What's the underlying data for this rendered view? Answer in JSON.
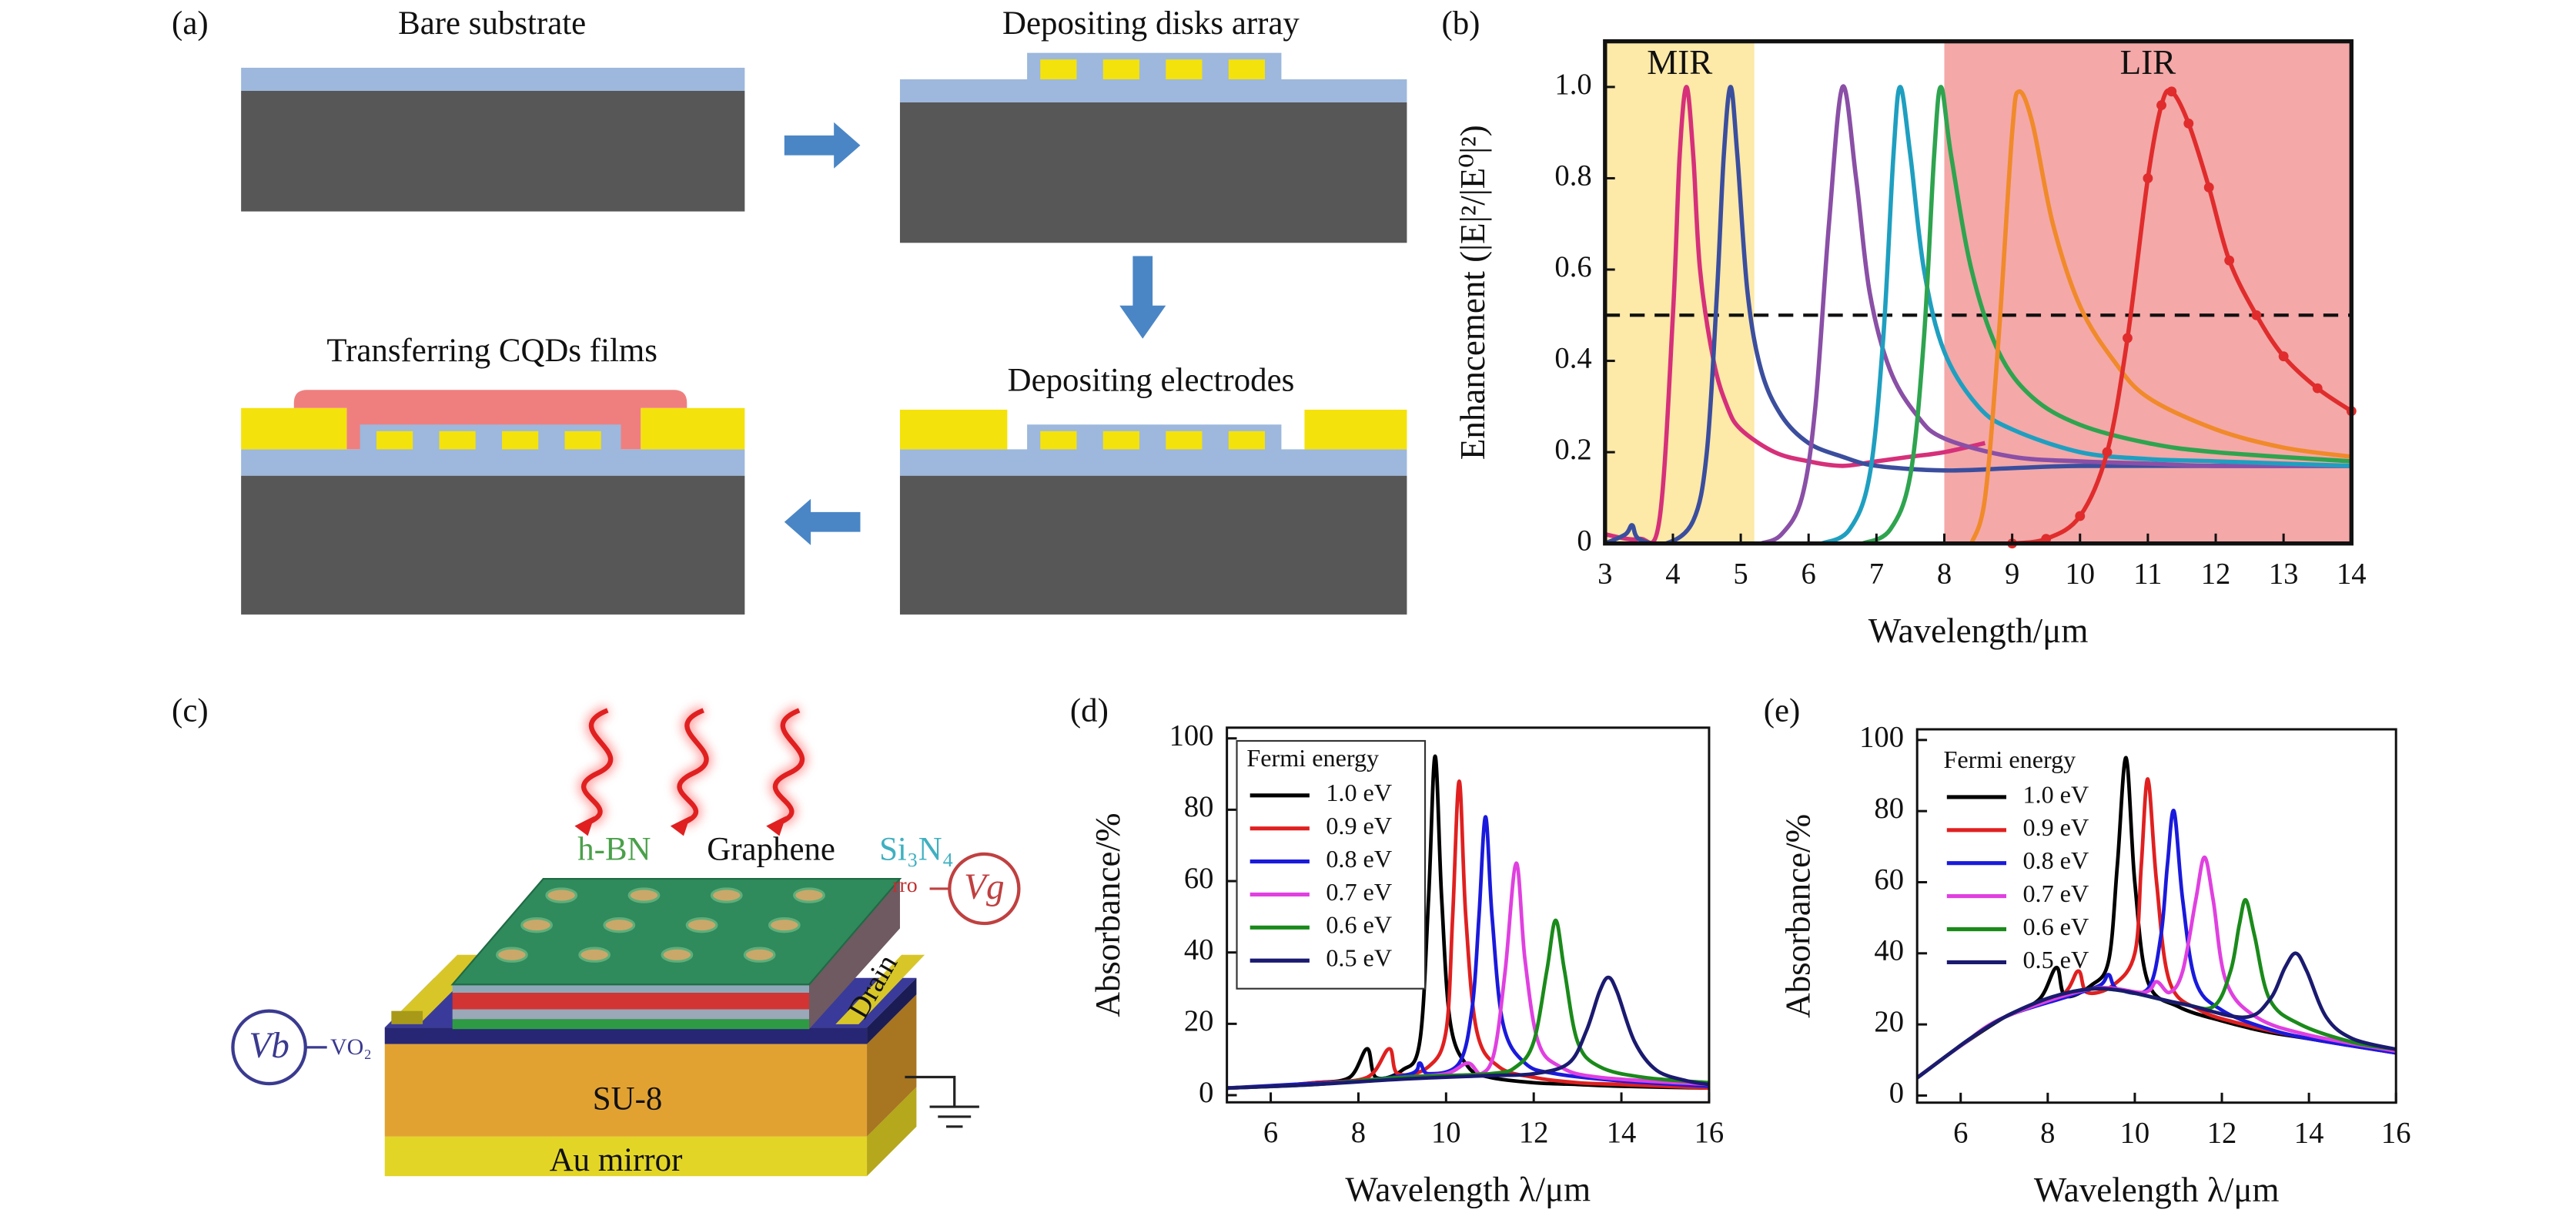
{
  "panels": {
    "a": {
      "label": "(a)",
      "steps": [
        "Bare substrate",
        "Depositing disks array",
        "Depositing electrodes",
        "Transferring CQDs films"
      ]
    },
    "c": {
      "label": "(c)",
      "layers": {
        "hbn": "h-BN",
        "graphene": "Graphene",
        "sin": "Si₃N₄",
        "vo2": "VO₂",
        "drain": "Drain",
        "su8": "SU-8",
        "mirror": "Au mirror"
      },
      "gate_tag": "rro",
      "vg": "Vg",
      "vb": "Vb"
    }
  },
  "chart_data": [
    {
      "type": "line",
      "panel_label": "(b)",
      "xlabel": "Wavelength/μm",
      "ylabel": "Enhancement (|E|²/|E⁰|²)",
      "xlim": [
        3,
        14
      ],
      "xticks": [
        3,
        4,
        5,
        6,
        7,
        8,
        9,
        10,
        11,
        12,
        13,
        14
      ],
      "ylim": [
        0,
        1.1
      ],
      "yticks": [
        0,
        0.2,
        0.4,
        0.6,
        0.8,
        {
          "value": 1,
          "label": "1.0"
        }
      ],
      "regions": [
        {
          "label": "MIR",
          "range": [
            3,
            5.2
          ],
          "color": "#fde9a8"
        },
        {
          "label": "LIR",
          "range": [
            8,
            14
          ],
          "color": "#f4a8a8"
        }
      ],
      "hline": 0.5,
      "series": [
        {
          "color": "#d6307a",
          "x": [
            3,
            3.5,
            3.8,
            4.0,
            4.1,
            4.2,
            4.3,
            4.4,
            4.6,
            4.8,
            5.0,
            5.5,
            6,
            6.5,
            7,
            7.5,
            8,
            8.6
          ],
          "values": [
            0.02,
            0.01,
            0.05,
            0.5,
            0.85,
            1.0,
            0.85,
            0.6,
            0.4,
            0.3,
            0.25,
            0.2,
            0.18,
            0.17,
            0.18,
            0.19,
            0.2,
            0.22
          ]
        },
        {
          "color": "#3b4e9e",
          "x": [
            3,
            3.3,
            3.4,
            3.5,
            3.9,
            4.3,
            4.5,
            4.65,
            4.75,
            4.85,
            4.95,
            5.1,
            5.3,
            5.6,
            6,
            6.5,
            7,
            8,
            9,
            10,
            12,
            14
          ],
          "values": [
            0,
            0.02,
            0.04,
            0.01,
            0,
            0.05,
            0.2,
            0.55,
            0.85,
            1.0,
            0.85,
            0.55,
            0.38,
            0.28,
            0.22,
            0.19,
            0.17,
            0.16,
            0.165,
            0.17,
            0.17,
            0.17
          ]
        },
        {
          "color": "#8a4fa6",
          "x": [
            5.3,
            5.6,
            5.9,
            6.1,
            6.3,
            6.5,
            6.7,
            6.9,
            7.2,
            7.6,
            8,
            9,
            10,
            11,
            12,
            14
          ],
          "values": [
            0,
            0.02,
            0.1,
            0.3,
            0.7,
            1.0,
            0.8,
            0.55,
            0.38,
            0.28,
            0.23,
            0.19,
            0.18,
            0.175,
            0.17,
            0.17
          ]
        },
        {
          "color": "#1f9fc0",
          "x": [
            6.2,
            6.6,
            6.9,
            7.1,
            7.25,
            7.35,
            7.5,
            7.7,
            8,
            8.5,
            9,
            10,
            11,
            12,
            14
          ],
          "values": [
            0,
            0.03,
            0.15,
            0.45,
            0.85,
            1.0,
            0.85,
            0.6,
            0.42,
            0.3,
            0.25,
            0.2,
            0.185,
            0.18,
            0.17
          ]
        },
        {
          "color": "#2ea44f",
          "x": [
            6.8,
            7.2,
            7.5,
            7.7,
            7.85,
            7.95,
            8.1,
            8.4,
            8.8,
            9.3,
            10,
            11,
            12,
            14
          ],
          "values": [
            0,
            0.03,
            0.15,
            0.45,
            0.85,
            1.0,
            0.85,
            0.6,
            0.42,
            0.32,
            0.26,
            0.22,
            0.2,
            0.18
          ]
        },
        {
          "color": "#f08a2a",
          "x": [
            8.4,
            8.6,
            8.8,
            9.0,
            9.1,
            9.3,
            9.6,
            10,
            10.5,
            11,
            12,
            13,
            14
          ],
          "values": [
            0,
            0.1,
            0.45,
            0.9,
            0.99,
            0.92,
            0.7,
            0.52,
            0.4,
            0.32,
            0.25,
            0.21,
            0.19
          ]
        },
        {
          "color": "#e02c2c",
          "marker": true,
          "x": [
            9,
            9.5,
            10,
            10.4,
            10.7,
            11,
            11.2,
            11.35,
            11.6,
            11.9,
            12.2,
            12.6,
            13,
            13.5,
            14
          ],
          "values": [
            0,
            0.01,
            0.06,
            0.2,
            0.45,
            0.8,
            0.96,
            0.99,
            0.92,
            0.78,
            0.62,
            0.5,
            0.41,
            0.34,
            0.29
          ]
        }
      ]
    },
    {
      "type": "line",
      "panel_label": "(d)",
      "xlabel": "Wavelength λ/μm",
      "ylabel": "Absorbance/%",
      "xlim": [
        5,
        16
      ],
      "xticks": [
        6,
        8,
        10,
        12,
        14,
        16
      ],
      "ylim": [
        -2,
        103
      ],
      "yticks": [
        0,
        20,
        40,
        60,
        80,
        100
      ],
      "legend_title": "Fermi energy",
      "legend": "upper left",
      "legend_frame": true,
      "series": [
        {
          "name": "1.0 eV",
          "color": "#000000",
          "x": [
            5,
            6,
            7,
            7.8,
            8.2,
            8.4,
            9,
            9.4,
            9.6,
            9.75,
            9.9,
            10.1,
            10.5,
            11,
            12,
            13,
            14,
            16
          ],
          "values": [
            2,
            2.5,
            3.5,
            5,
            13,
            5,
            7,
            15,
            55,
            95,
            55,
            20,
            8,
            5,
            3.5,
            3,
            2.5,
            2
          ]
        },
        {
          "name": "0.9 eV",
          "color": "#e02020",
          "x": [
            5,
            6,
            7,
            8.2,
            8.7,
            8.9,
            9.6,
            10,
            10.15,
            10.3,
            10.45,
            10.7,
            11.2,
            12,
            13,
            14,
            16
          ],
          "values": [
            2,
            2.5,
            3.5,
            5,
            13,
            6,
            8,
            18,
            50,
            88,
            50,
            18,
            8,
            5,
            3.5,
            3,
            2
          ]
        },
        {
          "name": "0.8 eV",
          "color": "#1a1adc",
          "x": [
            5,
            6.5,
            8,
            9.2,
            9.4,
            9.6,
            10.3,
            10.6,
            10.75,
            10.9,
            11.05,
            11.3,
            11.8,
            12.5,
            14,
            16
          ],
          "values": [
            2,
            3,
            4,
            6,
            9,
            6,
            9,
            25,
            50,
            78,
            50,
            20,
            9,
            6,
            4,
            2.5
          ]
        },
        {
          "name": "0.7 eV",
          "color": "#e040e0",
          "x": [
            5,
            7,
            9,
            10,
            10.5,
            10.8,
            11.1,
            11.35,
            11.6,
            11.8,
            12.1,
            12.6,
            13.5,
            16
          ],
          "values": [
            2,
            3,
            5,
            6,
            9,
            6,
            12,
            35,
            65,
            38,
            15,
            8,
            5,
            3
          ]
        },
        {
          "name": "0.6 eV",
          "color": "#1a8a1a",
          "x": [
            5,
            7,
            9,
            11,
            11.6,
            12,
            12.3,
            12.5,
            12.7,
            13,
            13.5,
            14.5,
            16
          ],
          "values": [
            2,
            3,
            5,
            6,
            8,
            15,
            35,
            49,
            35,
            15,
            8,
            5,
            3.5
          ]
        },
        {
          "name": "0.5 eV",
          "color": "#1a1a70",
          "x": [
            5,
            7,
            9,
            11,
            12,
            12.8,
            13.2,
            13.5,
            13.7,
            13.9,
            14.3,
            14.8,
            15.5,
            16
          ],
          "values": [
            2,
            3,
            4.5,
            5.5,
            6,
            9,
            18,
            29,
            33,
            29,
            15,
            7,
            4,
            3
          ]
        }
      ]
    },
    {
      "type": "line",
      "panel_label": "(e)",
      "xlabel": "Wavelength λ/μm",
      "ylabel": "Absorbance/%",
      "xlim": [
        5,
        16
      ],
      "xticks": [
        6,
        8,
        10,
        12,
        14,
        16
      ],
      "ylim": [
        -2,
        103
      ],
      "yticks": [
        0,
        20,
        40,
        60,
        80,
        100
      ],
      "legend_title": "Fermi energy",
      "legend": "upper left",
      "legend_frame": false,
      "series": [
        {
          "name": "1.0 eV",
          "color": "#000000",
          "x": [
            5,
            6,
            7,
            7.8,
            8.2,
            8.4,
            9,
            9.4,
            9.6,
            9.8,
            10,
            10.3,
            11,
            12,
            13,
            14,
            16
          ],
          "values": [
            5,
            14,
            22,
            27,
            36,
            28,
            31,
            38,
            65,
            95,
            60,
            32,
            25,
            21,
            18,
            16,
            12
          ]
        },
        {
          "name": "0.9 eV",
          "color": "#e02020",
          "x": [
            5,
            6,
            7,
            8.3,
            8.7,
            8.9,
            9.5,
            10,
            10.15,
            10.3,
            10.5,
            10.8,
            11.5,
            12.5,
            14,
            16
          ],
          "values": [
            5,
            14,
            22,
            28,
            35,
            29,
            31,
            40,
            65,
            89,
            60,
            32,
            24,
            20,
            16,
            12
          ]
        },
        {
          "name": "0.8 eV",
          "color": "#1a1adc",
          "x": [
            5,
            6,
            7,
            8.5,
            9.2,
            9.4,
            9.6,
            10.3,
            10.6,
            10.75,
            10.9,
            11.1,
            11.4,
            12,
            13,
            14,
            16
          ],
          "values": [
            5,
            14,
            22,
            28,
            31,
            34,
            30,
            30,
            45,
            65,
            80,
            55,
            32,
            24,
            19,
            16,
            12
          ]
        },
        {
          "name": "0.7 eV",
          "color": "#e040e0",
          "x": [
            5,
            6,
            7,
            9,
            10.2,
            10.5,
            10.8,
            11.1,
            11.4,
            11.6,
            11.8,
            12.1,
            12.8,
            14,
            16
          ],
          "values": [
            5,
            14,
            22,
            30,
            29,
            32,
            29,
            35,
            55,
            67,
            55,
            32,
            22,
            17,
            12.5
          ]
        },
        {
          "name": "0.6 eV",
          "color": "#1a8a1a",
          "x": [
            5,
            7,
            9,
            11,
            11.8,
            12.2,
            12.4,
            12.55,
            12.75,
            13.1,
            13.8,
            15,
            16
          ],
          "values": [
            5,
            22,
            30,
            26,
            25,
            35,
            48,
            55,
            45,
            27,
            20,
            15,
            13
          ]
        },
        {
          "name": "0.5 eV",
          "color": "#1a1a70",
          "x": [
            5,
            7,
            9,
            11,
            12.5,
            13.1,
            13.45,
            13.7,
            13.95,
            14.4,
            15,
            16
          ],
          "values": [
            5,
            22,
            30,
            26,
            22,
            27,
            36,
            40,
            35,
            22,
            16,
            13
          ]
        }
      ]
    }
  ]
}
